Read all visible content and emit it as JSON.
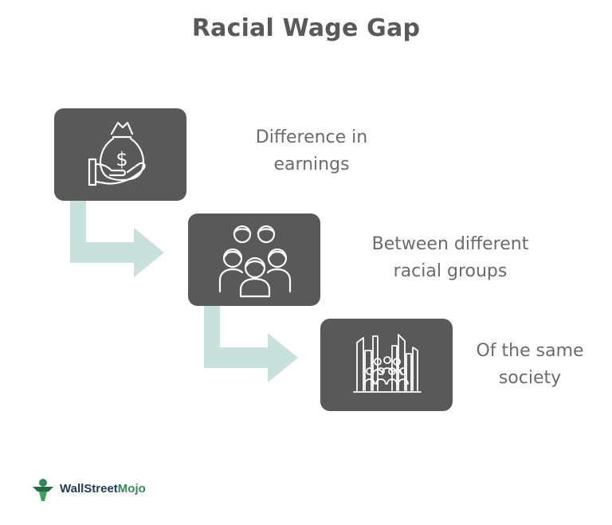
{
  "title": "Racial Wage Gap",
  "steps": [
    {
      "icon": "money-bag-hand-icon",
      "line1": "Difference in",
      "line2": "earnings"
    },
    {
      "icon": "people-group-icon",
      "line1": "Between different",
      "line2": "racial groups"
    },
    {
      "icon": "city-crowd-icon",
      "line1": "Of the same",
      "line2": "society"
    }
  ],
  "colors": {
    "box": "#595959",
    "arrow": "#c9e1dc",
    "text": "#6b6b6b",
    "title": "#595959"
  },
  "logo": {
    "name_part1": "WallStreet",
    "name_part2": "Mojo"
  }
}
